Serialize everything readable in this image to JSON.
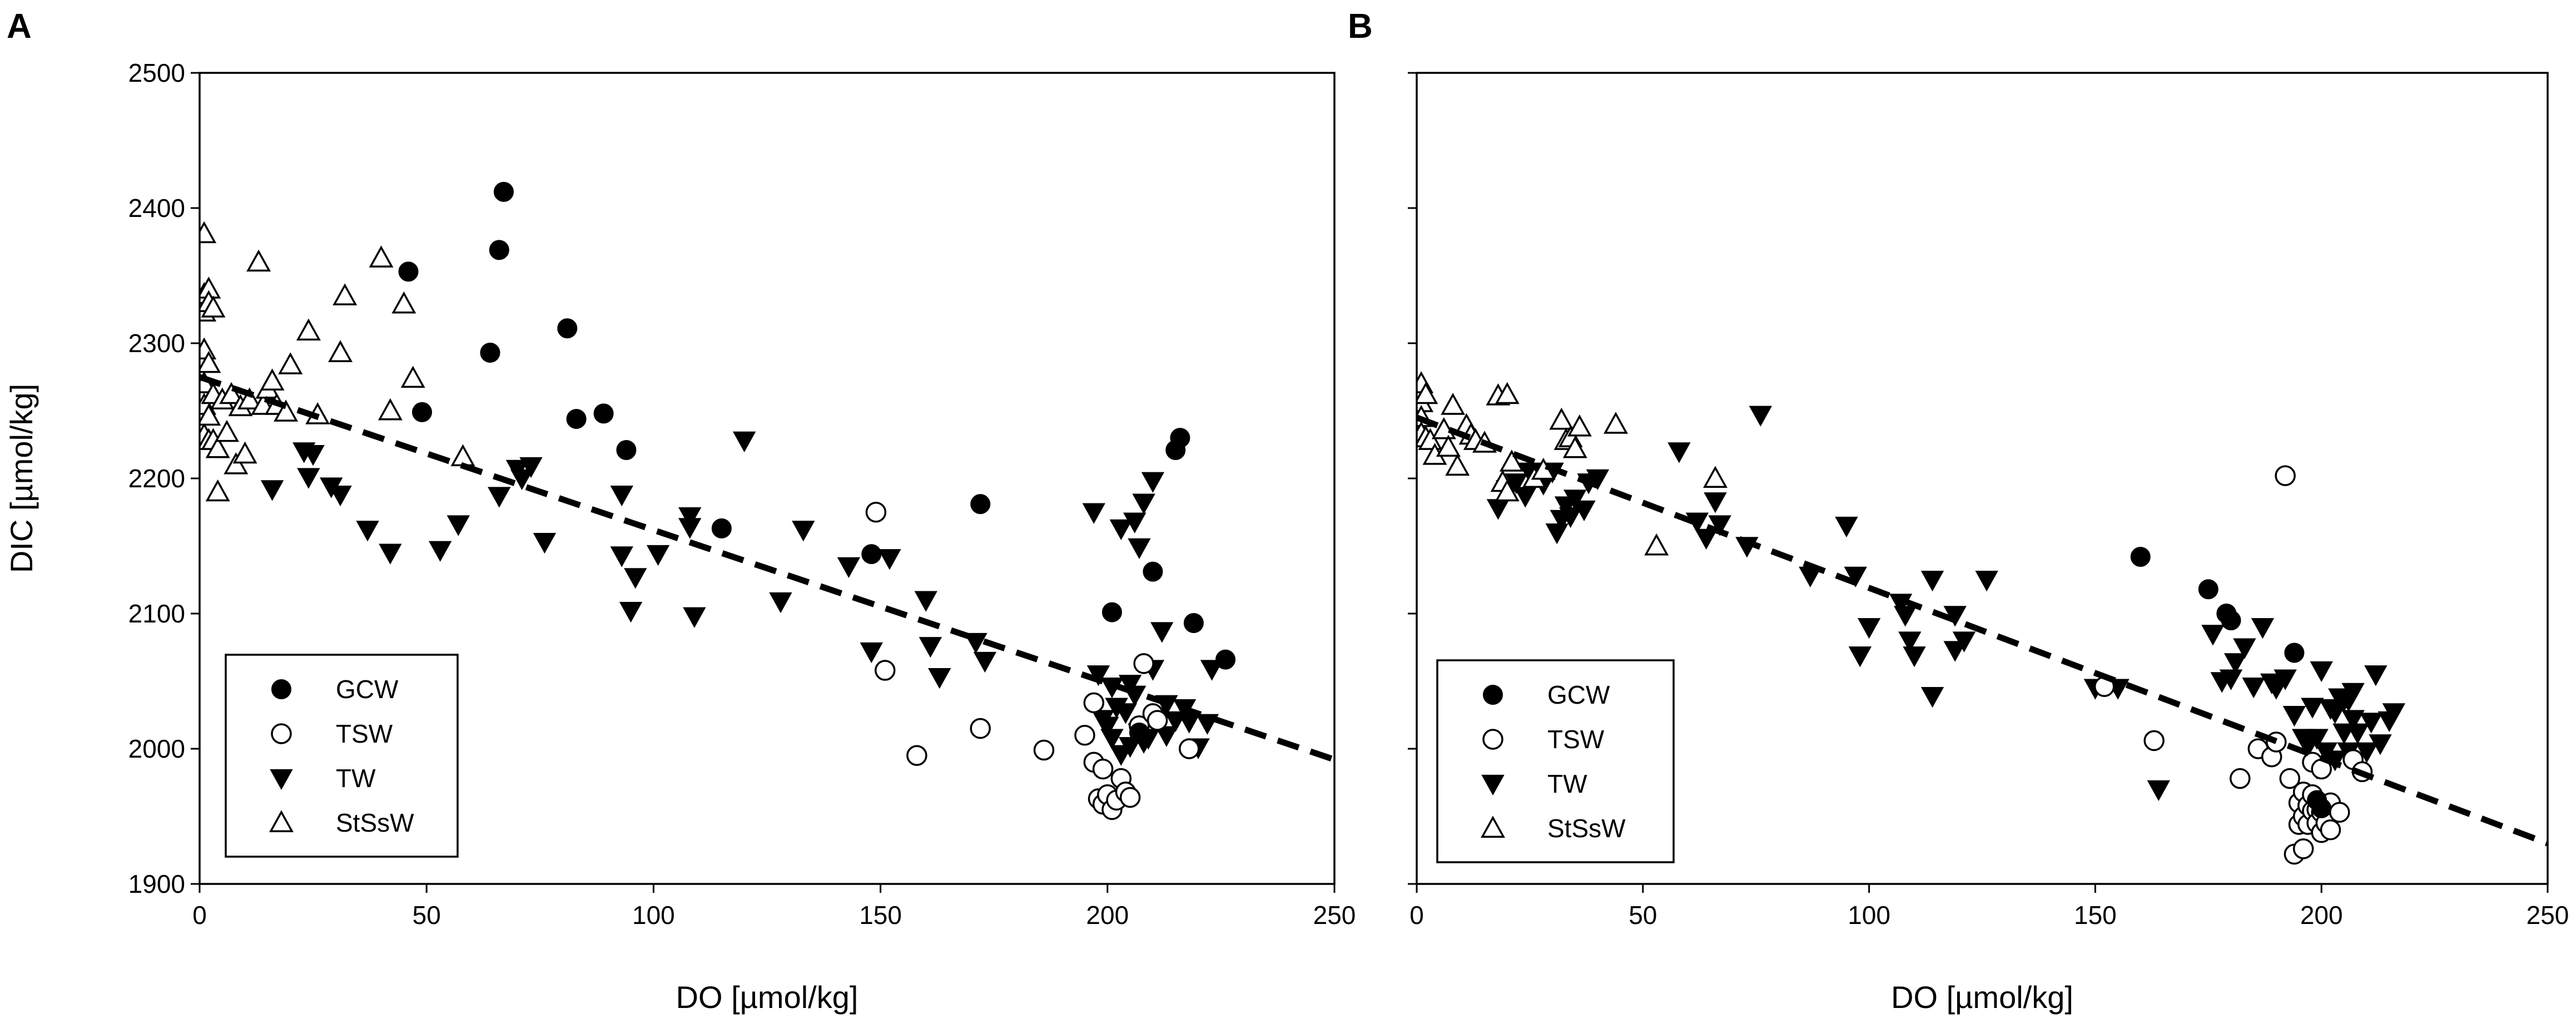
{
  "chart_data": [
    {
      "type": "scatter",
      "panel_label": "A",
      "xlabel": "DO [µmol/kg]",
      "ylabel": "DIC [µmol/kg]",
      "xlim": [
        0,
        250
      ],
      "ylim": [
        1900,
        2500
      ],
      "xticks": [
        "0",
        "50",
        "100",
        "150",
        "200",
        "250"
      ],
      "yticks": [
        "1900",
        "2000",
        "2100",
        "2200",
        "2300",
        "2400",
        "2500"
      ],
      "show_y_tick_labels": true,
      "legend": [
        "GCW",
        "TSW",
        "TW",
        "StSsW"
      ],
      "legend_position": "bottom-left",
      "trendline": {
        "style": "dashed",
        "x": [
          0,
          250
        ],
        "y": [
          2275,
          1992
        ]
      },
      "series": [
        {
          "name": "GCW",
          "marker": "filled-circle",
          "x": [
            46,
            49,
            64,
            66,
            67,
            81,
            83,
            89,
            94,
            115,
            148,
            172,
            201,
            207,
            210,
            215,
            216,
            219,
            226
          ],
          "y": [
            2353,
            2249,
            2293,
            2369,
            2412,
            2311,
            2244,
            2248,
            2221,
            2163,
            2144,
            2181,
            2101,
            2012,
            2131,
            2221,
            2230,
            2093,
            2066
          ]
        },
        {
          "name": "TSW",
          "marker": "open-circle",
          "x": [
            149,
            151,
            158,
            172,
            186,
            195,
            197,
            197,
            198,
            199,
            199,
            200,
            201,
            202,
            203,
            204,
            205,
            207,
            208,
            210,
            211,
            218
          ],
          "y": [
            2175,
            2058,
            1995,
            2015,
            1999,
            2010,
            2034,
            1990,
            1963,
            1985,
            1959,
            1966,
            1955,
            1962,
            1978,
            1968,
            1964,
            2017,
            2063,
            2026,
            2021,
            2000
          ]
        },
        {
          "name": "TW",
          "marker": "filled-down-triangle",
          "x": [
            16,
            23,
            24,
            25,
            29,
            31,
            37,
            42,
            53,
            57,
            66,
            70,
            71,
            73,
            76,
            93,
            93,
            95,
            96,
            101,
            108,
            108,
            109,
            120,
            128,
            133,
            143,
            148,
            152,
            160,
            161,
            163,
            171,
            173,
            197,
            198,
            199,
            200,
            201,
            201,
            202,
            203,
            203,
            204,
            205,
            205,
            206,
            206,
            207,
            207,
            208,
            208,
            209,
            210,
            210,
            211,
            212,
            213,
            213,
            215,
            217,
            218,
            220,
            222,
            223
          ],
          "y": [
            2192,
            2220,
            2201,
            2218,
            2194,
            2188,
            2162,
            2145,
            2147,
            2166,
            2187,
            2207,
            2200,
            2209,
            2153,
            2188,
            2143,
            2102,
            2127,
            2144,
            2172,
            2164,
            2098,
            2228,
            2109,
            2162,
            2135,
            2072,
            2141,
            2110,
            2076,
            2053,
            2079,
            2065,
            2175,
            2055,
            2022,
            2017,
            2046,
            2008,
            2031,
            2163,
            1996,
            2027,
            2002,
            2048,
            2168,
            2040,
            2012,
            2149,
            2005,
            2182,
            2008,
            2059,
            2198,
            2024,
            2087,
            2033,
            2010,
            2021,
            2030,
            2020,
            2001,
            2019,
            2059
          ]
        },
        {
          "name": "StSsW",
          "marker": "open-up-triangle",
          "x": [
            1,
            1,
            1,
            1,
            1,
            1,
            1,
            2,
            2,
            2,
            2,
            2,
            3,
            3,
            3,
            4,
            4,
            5,
            6,
            7,
            8,
            9,
            10,
            11,
            13,
            14,
            15,
            16,
            17,
            19,
            20,
            24,
            26,
            31,
            32,
            40,
            42,
            45,
            47,
            58
          ],
          "y": [
            2381,
            2336,
            2323,
            2295,
            2270,
            2254,
            2232,
            2340,
            2330,
            2285,
            2246,
            2228,
            2326,
            2262,
            2228,
            2222,
            2190,
            2258,
            2234,
            2262,
            2210,
            2253,
            2218,
            2258,
            2360,
            2254,
            2266,
            2272,
            2254,
            2249,
            2284,
            2309,
            2247,
            2293,
            2335,
            2363,
            2250,
            2329,
            2274,
            2216
          ]
        }
      ]
    },
    {
      "type": "scatter",
      "panel_label": "B",
      "xlabel": "DO [µmol/kg]",
      "ylabel": "",
      "xlim": [
        0,
        250
      ],
      "ylim": [
        1900,
        2500
      ],
      "xticks": [
        "0",
        "50",
        "100",
        "150",
        "200",
        "250"
      ],
      "yticks": [
        "1900",
        "2000",
        "2100",
        "2200",
        "2300",
        "2400",
        "2500"
      ],
      "show_y_tick_labels": false,
      "legend": [
        "GCW",
        "TSW",
        "TW",
        "StSsW"
      ],
      "legend_position": "bottom-left",
      "trendline": {
        "style": "dashed",
        "x": [
          0,
          250
        ],
        "y": [
          2245,
          1930
        ]
      },
      "series": [
        {
          "name": "GCW",
          "marker": "filled-circle",
          "x": [
            160,
            175,
            179,
            180,
            194,
            199,
            200
          ],
          "y": [
            2142,
            2118,
            2100,
            2095,
            2071,
            1962,
            1956
          ]
        },
        {
          "name": "TSW",
          "marker": "open-circle",
          "x": [
            152,
            163,
            182,
            186,
            189,
            190,
            192,
            193,
            194,
            195,
            195,
            196,
            196,
            196,
            197,
            197,
            198,
            198,
            198,
            199,
            199,
            200,
            200,
            200,
            201,
            201,
            202,
            202,
            204,
            207,
            209
          ],
          "y": [
            2046,
            2006,
            1978,
            2000,
            1994,
            2005,
            2202,
            1978,
            1922,
            1960,
            1944,
            1926,
            1968,
            1950,
            1958,
            1944,
            1954,
            1990,
            1966,
            1955,
            1945,
            1938,
            1985,
            1953,
            1958,
            1945,
            1940,
            1960,
            1953,
            1992,
            1983
          ]
        },
        {
          "name": "TW",
          "marker": "filled-down-triangle",
          "x": [
            18,
            20,
            22,
            24,
            25,
            28,
            30,
            31,
            32,
            33,
            34,
            35,
            37,
            38,
            40,
            58,
            62,
            64,
            66,
            67,
            73,
            76,
            87,
            95,
            97,
            98,
            100,
            107,
            108,
            109,
            110,
            114,
            114,
            119,
            119,
            121,
            126,
            150,
            155,
            164,
            176,
            178,
            180,
            181,
            183,
            185,
            187,
            189,
            190,
            192,
            194,
            196,
            197,
            198,
            199,
            199,
            200,
            201,
            202,
            203,
            203,
            204,
            205,
            205,
            206,
            206,
            207,
            207,
            208,
            210,
            211,
            212,
            213,
            215,
            216
          ],
          "y": [
            2178,
            2192,
            2197,
            2187,
            2205,
            2196,
            2205,
            2160,
            2170,
            2180,
            2172,
            2185,
            2177,
            2197,
            2200,
            2220,
            2168,
            2156,
            2183,
            2166,
            2150,
            2247,
            2128,
            2165,
            2128,
            2069,
            2090,
            2108,
            2099,
            2080,
            2069,
            2039,
            2125,
            2099,
            2073,
            2080,
            2125,
            2045,
            2045,
            1970,
            2085,
            2050,
            2052,
            2064,
            2075,
            2046,
            2090,
            2049,
            2045,
            2052,
            2025,
            2008,
            2002,
            2031,
            2008,
            1986,
            2058,
            1998,
            2030,
            2027,
            1992,
            2038,
            2012,
            2036,
            1998,
            2036,
            2022,
            2042,
            2012,
            1998,
            2020,
            2055,
            2004,
            2021,
            2027
          ]
        },
        {
          "name": "StSsW",
          "marker": "open-up-triangle",
          "x": [
            1,
            1,
            1,
            1,
            2,
            2,
            3,
            4,
            6,
            7,
            8,
            9,
            11,
            12,
            13,
            15,
            18,
            19,
            20,
            20,
            21,
            26,
            28,
            32,
            33,
            34,
            35,
            36,
            44,
            53,
            66
          ],
          "y": [
            2270,
            2256,
            2245,
            2233,
            2262,
            2230,
            2228,
            2217,
            2236,
            2223,
            2254,
            2209,
            2239,
            2232,
            2228,
            2226,
            2261,
            2197,
            2262,
            2190,
            2212,
            2200,
            2206,
            2243,
            2228,
            2230,
            2222,
            2238,
            2240,
            2150,
            2200
          ]
        }
      ]
    }
  ]
}
